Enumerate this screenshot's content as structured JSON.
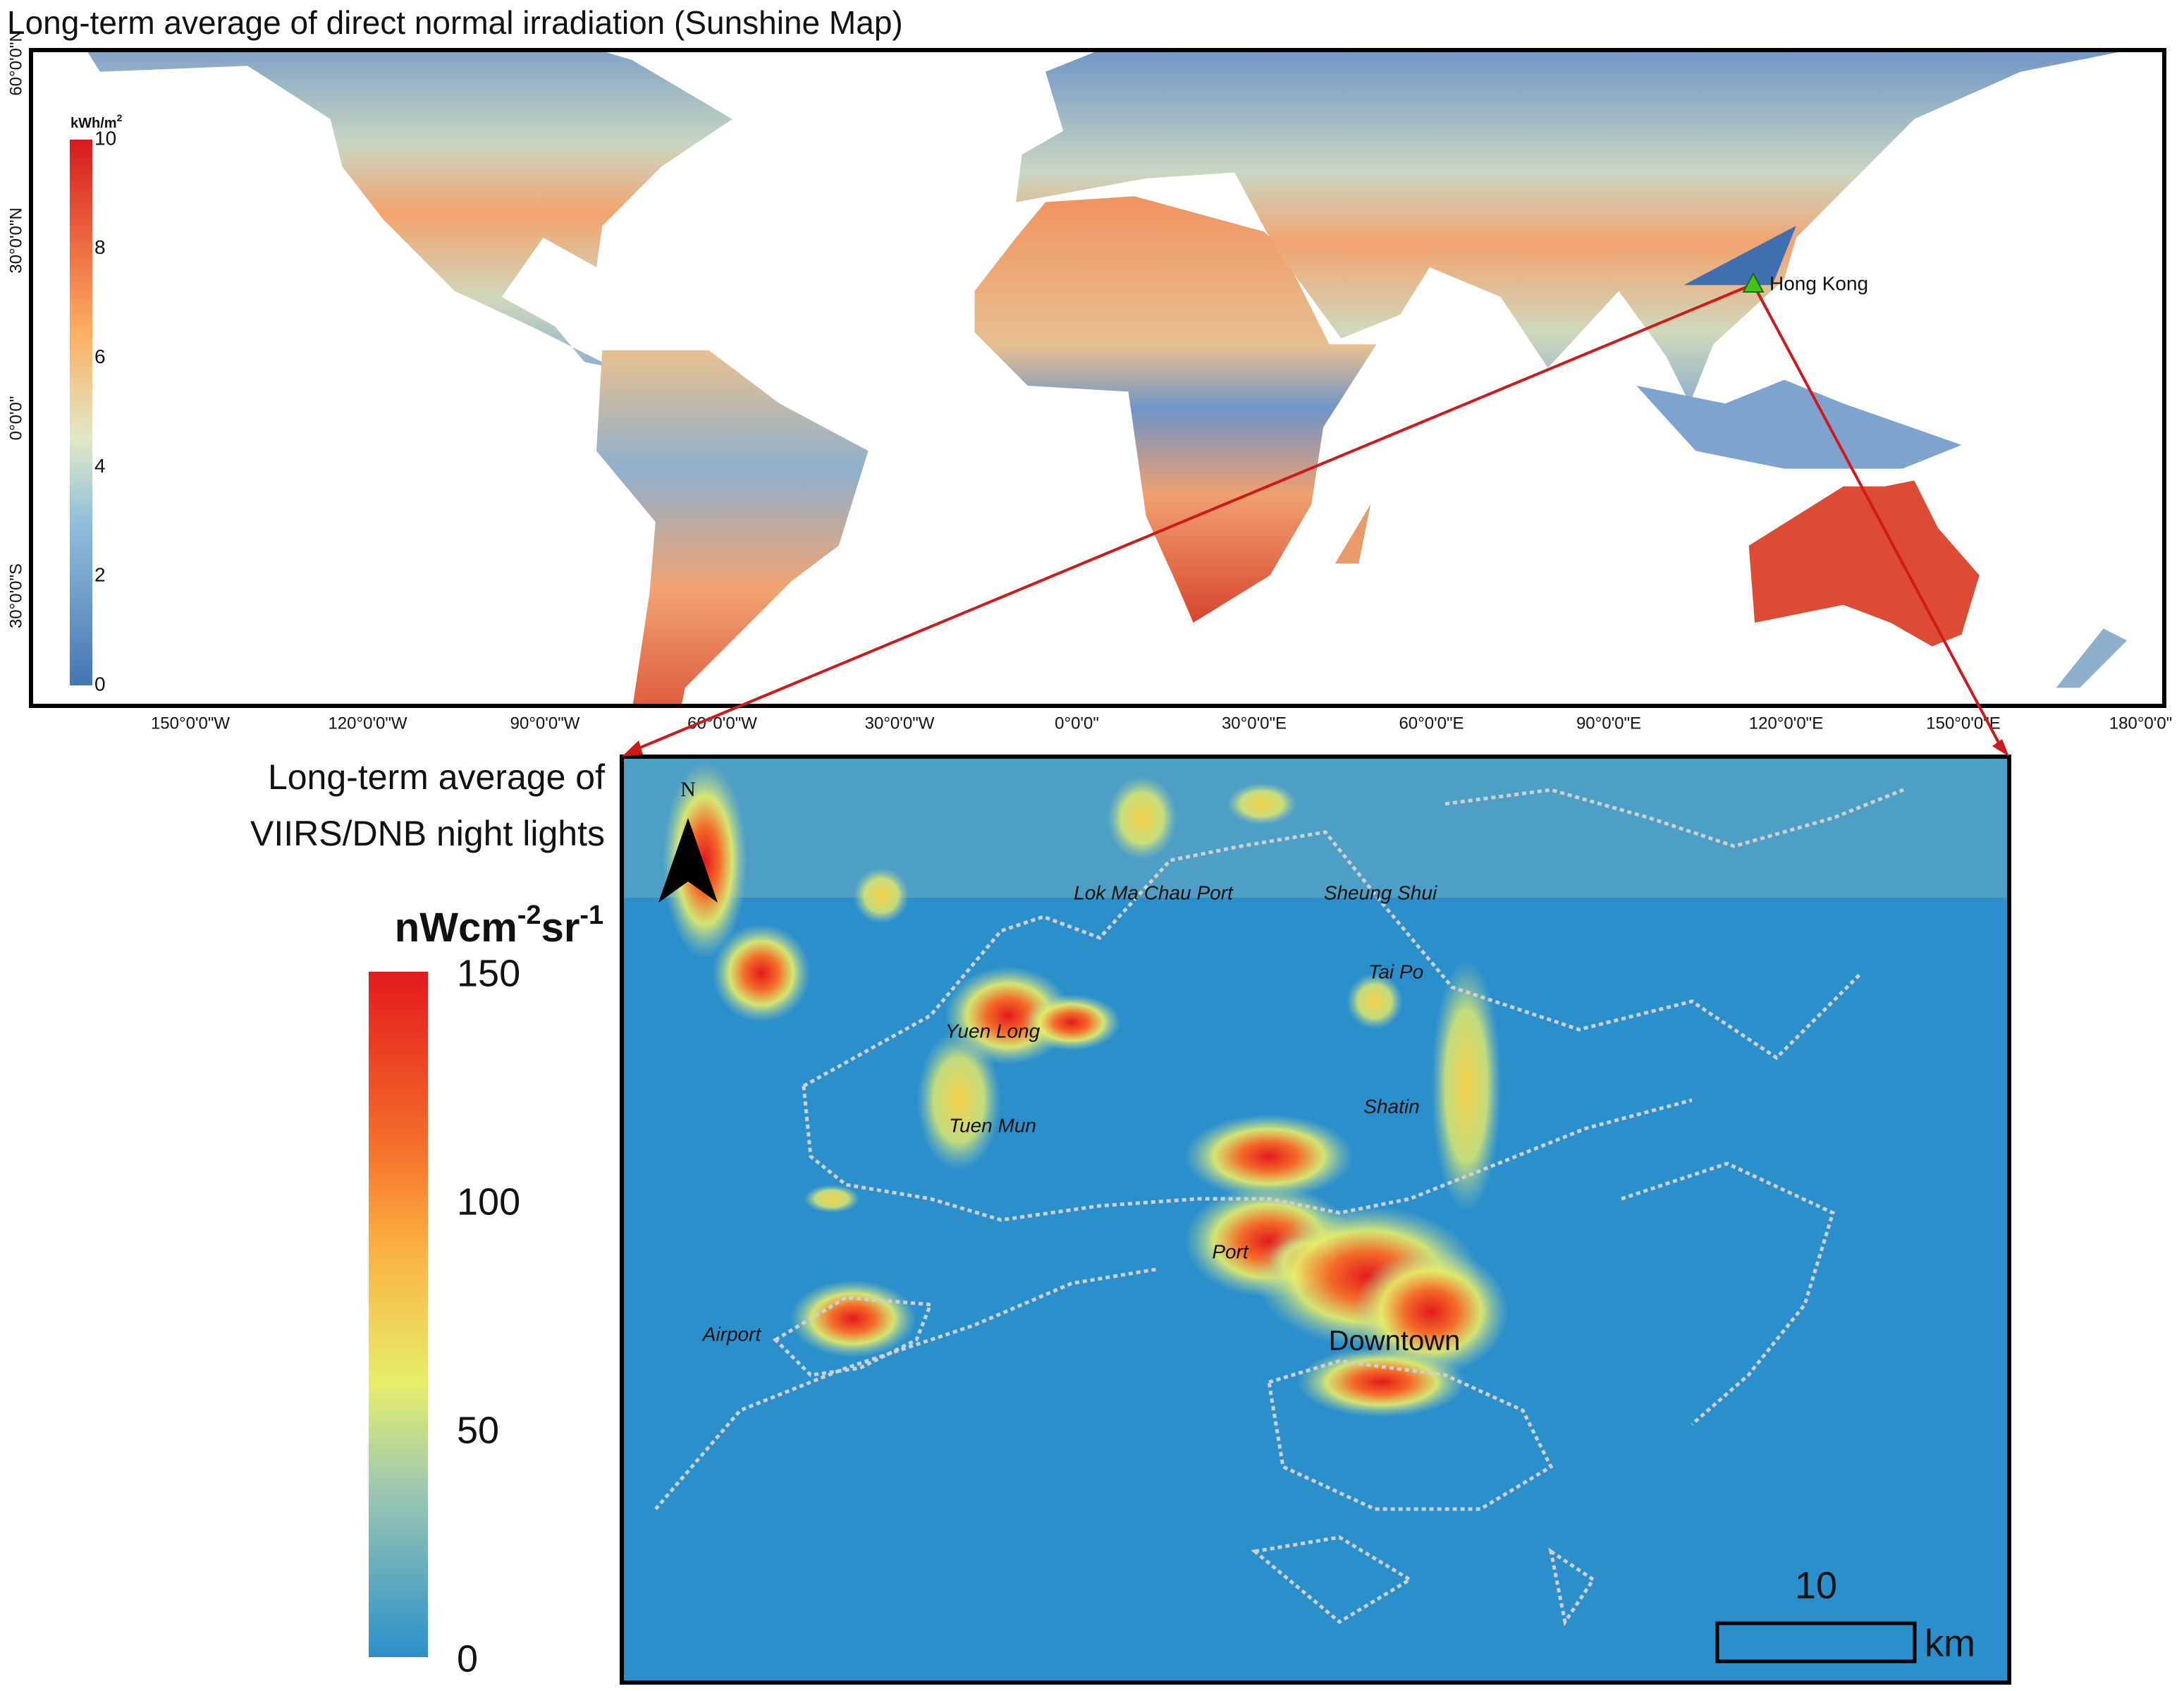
{
  "top_map": {
    "title": "Long-term average of direct normal irradiation (Sunshine Map)",
    "legend_unit": {
      "base": "kWh/m",
      "exp": "2"
    },
    "legend_ticks": [
      10,
      8,
      6,
      4,
      2,
      0
    ],
    "lat_labels": [
      "60°0'0\"N",
      "30°0'0\"N",
      "0°0'0\"",
      "30°0'0\"S"
    ],
    "lon_labels": [
      "150°0'0\"W",
      "120°0'0\"W",
      "90°0'0\"W",
      "60°0'0\"W",
      "30°0'0\"W",
      "0°0'0\"",
      "30°0'0\"E",
      "60°0'0\"E",
      "90°0'0\"E",
      "120°0'0\"E",
      "150°0'0\"E",
      "180°0'0\""
    ],
    "marker_label": "Hong Kong"
  },
  "bottom_map": {
    "title_lines": [
      "Long-term average of",
      "VIIRS/DNB night lights"
    ],
    "unit": {
      "base": "nWcm",
      "exp1": "-2",
      "mid": "sr",
      "exp2": "-1"
    },
    "legend_ticks": [
      150,
      100,
      50,
      0
    ],
    "north": "N",
    "places": [
      "Lok Ma Chau Port",
      "Sheung Shui",
      "Tai Po",
      "Yuen Long",
      "Tuen Mun",
      "Shatin",
      "Port",
      "Airport",
      "Downtown"
    ],
    "scale_bar": {
      "value": "10",
      "unit": "km"
    }
  }
}
